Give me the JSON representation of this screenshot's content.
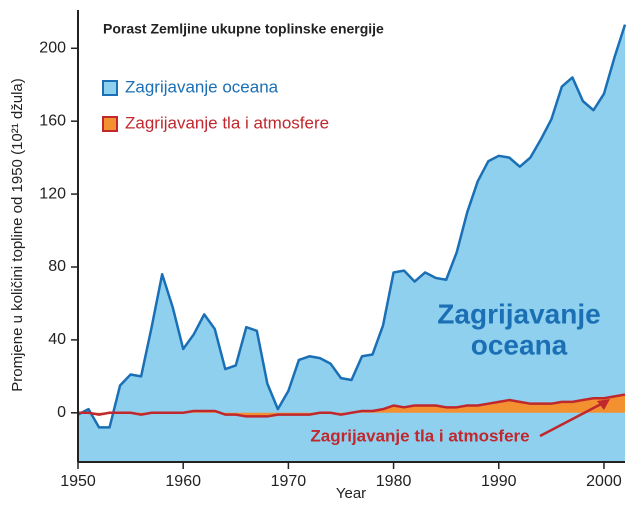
{
  "chart_data": {
    "type": "area",
    "title": "Porast Zemljine ukupne toplinske energije",
    "xlabel": "Year",
    "ylabel": "Promjene u količini topline od 1950   (10²¹ džula)",
    "x": [
      1950,
      1951,
      1952,
      1953,
      1954,
      1955,
      1956,
      1957,
      1958,
      1959,
      1960,
      1961,
      1962,
      1963,
      1964,
      1965,
      1966,
      1967,
      1968,
      1969,
      1970,
      1971,
      1972,
      1973,
      1974,
      1975,
      1976,
      1977,
      1978,
      1979,
      1980,
      1981,
      1982,
      1983,
      1984,
      1985,
      1986,
      1987,
      1988,
      1989,
      1990,
      1991,
      1992,
      1993,
      1994,
      1995,
      1996,
      1997,
      1998,
      1999,
      2000,
      2001,
      2002
    ],
    "series": [
      {
        "name": "Zagrijavanje oceana",
        "color": "#1a6fb5",
        "fill": "#8fd0ee",
        "values": [
          -1,
          2,
          -8,
          -8,
          15,
          21,
          20,
          47,
          76,
          58,
          35,
          43,
          54,
          46,
          24,
          26,
          47,
          45,
          16,
          2,
          12,
          29,
          31,
          30,
          27,
          19,
          18,
          31,
          32,
          48,
          77,
          78,
          72,
          77,
          74,
          73,
          88,
          110,
          127,
          138,
          141,
          140,
          135,
          140,
          150,
          161,
          179,
          184,
          171,
          166,
          175,
          195,
          213
        ]
      },
      {
        "name": "Zagrijavanje tla i atmosfere",
        "color": "#c0282d",
        "fill": "#f39130",
        "values": [
          0,
          0,
          -1,
          0,
          0,
          0,
          -1,
          0,
          0,
          0,
          0,
          1,
          1,
          1,
          -1,
          -1,
          -2,
          -2,
          -2,
          -1,
          -1,
          -1,
          -1,
          0,
          0,
          -1,
          0,
          1,
          1,
          2,
          4,
          3,
          4,
          4,
          4,
          3,
          3,
          4,
          4,
          5,
          6,
          7,
          6,
          5,
          5,
          5,
          6,
          6,
          7,
          8,
          8,
          9,
          10
        ]
      }
    ],
    "annotations": [
      {
        "lines": [
          "Zagrijavanje",
          "oceana"
        ],
        "color": "#1a6fb5"
      },
      {
        "lines": [
          "Zagrijavanje tla i atmosfere"
        ],
        "color": "#c0282d"
      }
    ],
    "xlim": [
      1950,
      2002
    ],
    "xticks": [
      1950,
      1960,
      1970,
      1980,
      1990,
      2000
    ],
    "ylim": [
      -27,
      221
    ],
    "yticks": [
      0,
      40,
      80,
      120,
      160,
      200
    ],
    "legend": "upper left"
  }
}
